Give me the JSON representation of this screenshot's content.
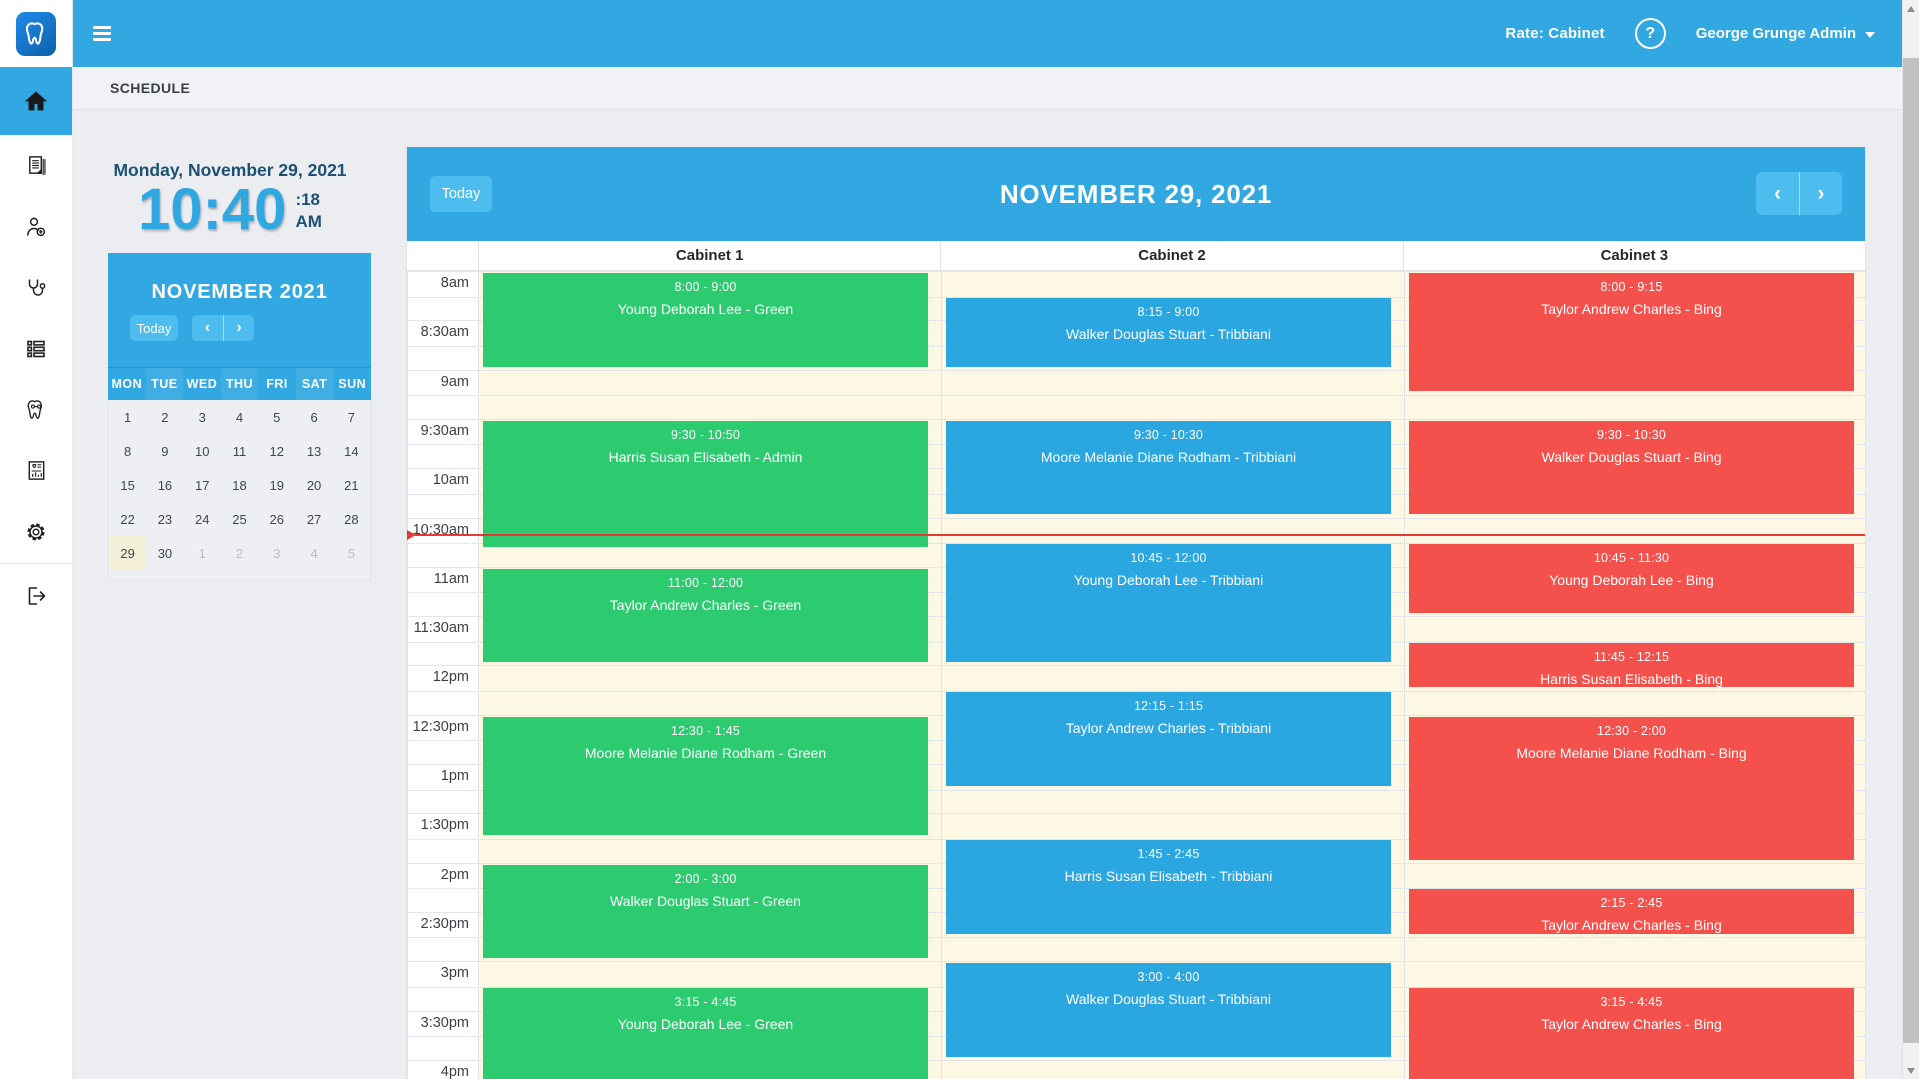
{
  "topbar": {
    "rate_label": "Rate: Cabinet",
    "help_label": "?",
    "user_name": "George Grunge Admin"
  },
  "page": {
    "title": "SCHEDULE"
  },
  "sidebar": {
    "logo_icon": "tooth-logo-icon",
    "icons": [
      "home-icon",
      "document-icon",
      "patient-icon",
      "stethoscope-icon",
      "list-icon",
      "tooth-icon",
      "report-icon",
      "gear-icon",
      "logout-icon"
    ],
    "active_index": 0
  },
  "clock": {
    "date": "Monday, November 29, 2021",
    "time": "10:40",
    "seconds": ":18",
    "meridiem": "AM"
  },
  "mini_calendar": {
    "title": "NOVEMBER 2021",
    "today_label": "Today",
    "prev_icon": "‹",
    "next_icon": "›",
    "day_headers": [
      "MON",
      "TUE",
      "WED",
      "THU",
      "FRI",
      "SAT",
      "SUN"
    ],
    "weeks": [
      [
        {
          "day": 1
        },
        {
          "day": 2
        },
        {
          "day": 3
        },
        {
          "day": 4
        },
        {
          "day": 5
        },
        {
          "day": 6
        },
        {
          "day": 7
        }
      ],
      [
        {
          "day": 8
        },
        {
          "day": 9
        },
        {
          "day": 10
        },
        {
          "day": 11
        },
        {
          "day": 12
        },
        {
          "day": 13
        },
        {
          "day": 14
        }
      ],
      [
        {
          "day": 15
        },
        {
          "day": 16
        },
        {
          "day": 17
        },
        {
          "day": 18
        },
        {
          "day": 19
        },
        {
          "day": 20
        },
        {
          "day": 21
        }
      ],
      [
        {
          "day": 22
        },
        {
          "day": 23
        },
        {
          "day": 24
        },
        {
          "day": 25
        },
        {
          "day": 26
        },
        {
          "day": 27
        },
        {
          "day": 28
        }
      ],
      [
        {
          "day": 29,
          "today": true
        },
        {
          "day": 30
        },
        {
          "day": 1,
          "other_month": true
        },
        {
          "day": 2,
          "other_month": true
        },
        {
          "day": 3,
          "other_month": true
        },
        {
          "day": 4,
          "other_month": true
        },
        {
          "day": 5,
          "other_month": true
        }
      ]
    ]
  },
  "scheduler": {
    "today_label": "Today",
    "title": "NOVEMBER 29, 2021",
    "prev_icon": "‹",
    "next_icon": "›",
    "columns": [
      "Cabinet 1",
      "Cabinet 2",
      "Cabinet 3"
    ],
    "time_labels": [
      "8am",
      "8:30am",
      "9am",
      "9:30am",
      "10am",
      "10:30am",
      "11am",
      "11:30am",
      "12pm",
      "12:30pm",
      "1pm",
      "1:30pm",
      "2pm",
      "2:30pm",
      "3pm",
      "3:30pm",
      "4pm"
    ],
    "now_time_decimal": 10.672,
    "events": [
      {
        "column": 0,
        "time": "8:00 - 9:00",
        "person": "Young Deborah Lee - Green",
        "start": 8.0,
        "end": 9.0,
        "color": "green"
      },
      {
        "column": 0,
        "time": "9:30 - 10:50",
        "person": "Harris Susan Elisabeth - Admin",
        "start": 9.5,
        "end": 10.833,
        "color": "green"
      },
      {
        "column": 0,
        "time": "11:00 - 12:00",
        "person": "Taylor Andrew Charles - Green",
        "start": 11.0,
        "end": 12.0,
        "color": "green"
      },
      {
        "column": 0,
        "time": "12:30 - 1:45",
        "person": "Moore Melanie Diane Rodham - Green",
        "start": 12.5,
        "end": 13.75,
        "color": "green"
      },
      {
        "column": 0,
        "time": "2:00 - 3:00",
        "person": "Walker Douglas Stuart - Green",
        "start": 14.0,
        "end": 15.0,
        "color": "green"
      },
      {
        "column": 0,
        "time": "3:15 - 4:45",
        "person": "Young Deborah Lee - Green",
        "start": 15.25,
        "end": 16.75,
        "color": "green"
      },
      {
        "column": 1,
        "time": "8:15 - 9:00",
        "person": "Walker Douglas Stuart - Tribbiani",
        "start": 8.25,
        "end": 9.0,
        "color": "blue"
      },
      {
        "column": 1,
        "time": "9:30 - 10:30",
        "person": "Moore Melanie Diane Rodham - Tribbiani",
        "start": 9.5,
        "end": 10.5,
        "color": "blue"
      },
      {
        "column": 1,
        "time": "10:45 - 12:00",
        "person": "Young Deborah Lee - Tribbiani",
        "start": 10.75,
        "end": 12.0,
        "color": "blue"
      },
      {
        "column": 1,
        "time": "12:15 - 1:15",
        "person": "Taylor Andrew Charles - Tribbiani",
        "start": 12.25,
        "end": 13.25,
        "color": "blue"
      },
      {
        "column": 1,
        "time": "1:45 - 2:45",
        "person": "Harris Susan Elisabeth - Tribbiani",
        "start": 13.75,
        "end": 14.75,
        "color": "blue"
      },
      {
        "column": 1,
        "time": "3:00 - 4:00",
        "person": "Walker Douglas Stuart - Tribbiani",
        "start": 15.0,
        "end": 16.0,
        "color": "blue"
      },
      {
        "column": 2,
        "time": "8:00 - 9:15",
        "person": "Taylor Andrew Charles - Bing",
        "start": 8.0,
        "end": 9.25,
        "color": "red"
      },
      {
        "column": 2,
        "time": "9:30 - 10:30",
        "person": "Walker Douglas Stuart - Bing",
        "start": 9.5,
        "end": 10.5,
        "color": "red"
      },
      {
        "column": 2,
        "time": "10:45 - 11:30",
        "person": "Young Deborah Lee - Bing",
        "start": 10.75,
        "end": 11.5,
        "color": "red"
      },
      {
        "column": 2,
        "time": "11:45 - 12:15",
        "person": "Harris Susan Elisabeth - Bing",
        "start": 11.75,
        "end": 12.25,
        "color": "red"
      },
      {
        "column": 2,
        "time": "12:30 - 2:00",
        "person": "Moore Melanie Diane Rodham - Bing",
        "start": 12.5,
        "end": 14.0,
        "color": "red"
      },
      {
        "column": 2,
        "time": "2:15 - 2:45",
        "person": "Taylor Andrew Charles - Bing",
        "start": 14.25,
        "end": 14.75,
        "color": "red"
      },
      {
        "column": 2,
        "time": "3:15 - 4:45",
        "person": "Taylor Andrew Charles - Bing",
        "start": 15.25,
        "end": 16.75,
        "color": "red"
      }
    ]
  },
  "colors": {
    "accent": "#31a8e1",
    "accent_light": "#4dbcee",
    "event_green": "#2dcb70",
    "event_blue": "#2aa7e0",
    "event_red": "#f4514d",
    "now_line": "#e23b36",
    "column_bg": "#fdf8e4",
    "today_cell": "#f5f1d8",
    "logo_blue": "#1272b8"
  }
}
